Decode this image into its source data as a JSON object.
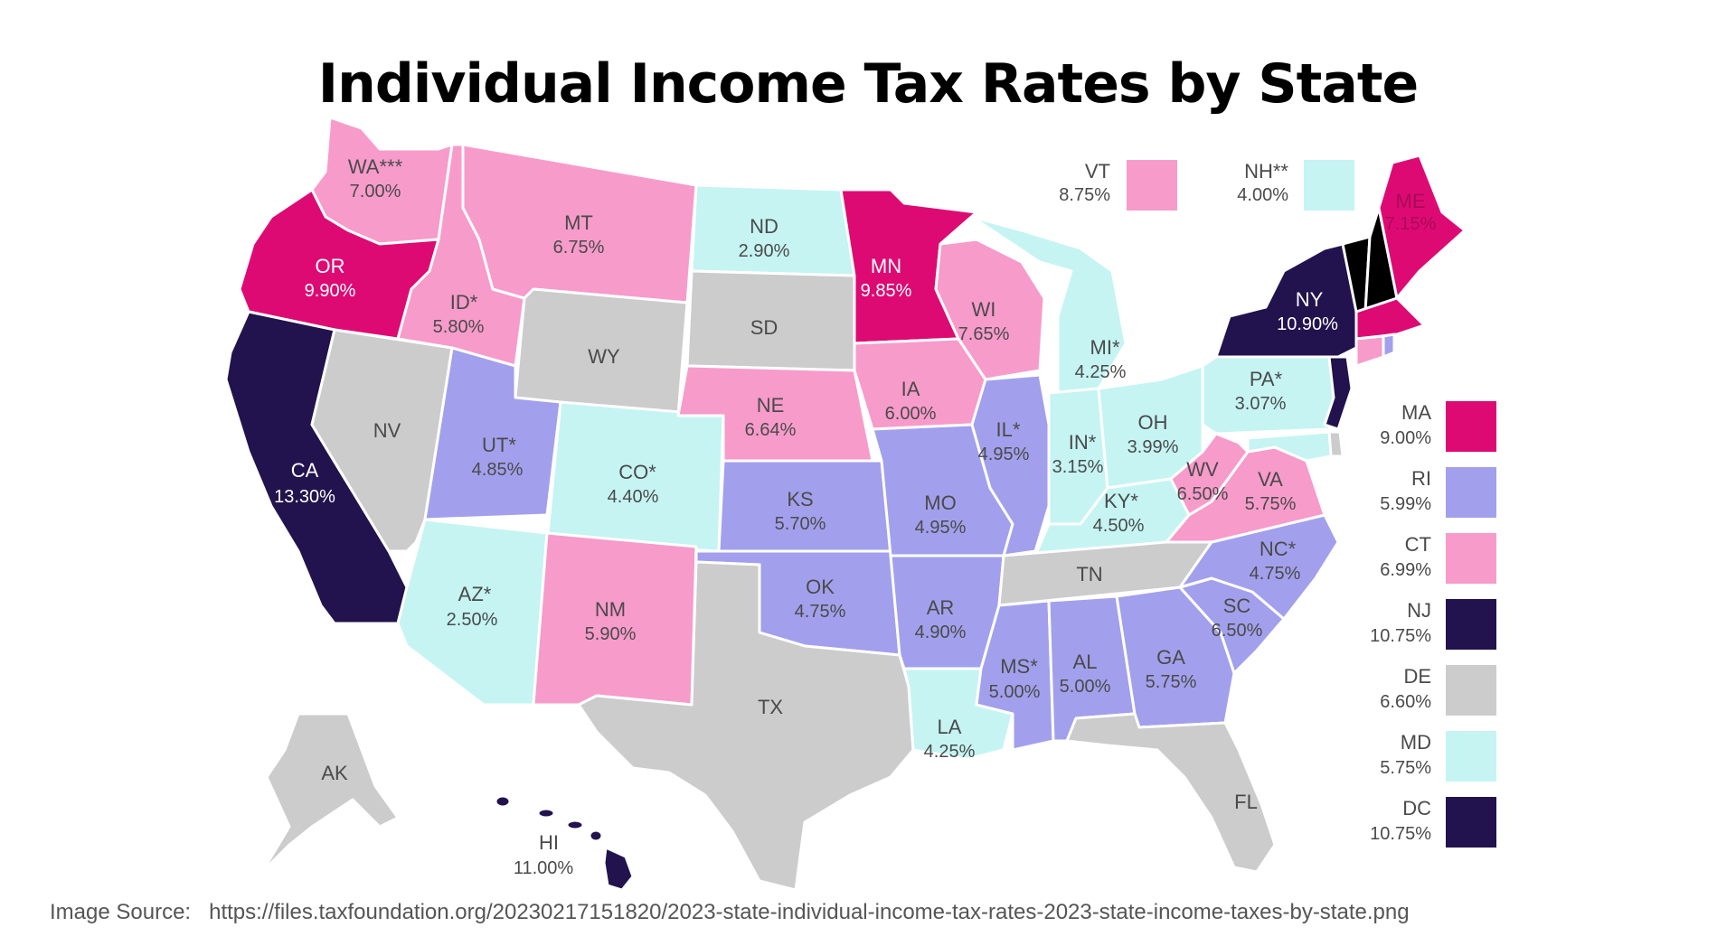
{
  "title": "Individual Income Tax Rates by State",
  "source_label": "Image Source:",
  "source_url": "https://files.taxfoundation.org/20230217151820/2023-state-individual-income-tax-rates-2023-state-income-taxes-by-state.png",
  "colors": {
    "magenta": "#de0a73",
    "navy": "#22124d",
    "lavender": "#a2a0ec",
    "pink": "#f79bcb",
    "cyan": "#c5f4f3",
    "gray": "#cccccc",
    "orange": "#f5b13a",
    "yellow": "#f2d24b"
  },
  "states": {
    "WA": {
      "code": "WA***",
      "rate": "7.00%",
      "color": "pink"
    },
    "OR": {
      "code": "OR",
      "rate": "9.90%",
      "color": "magenta"
    },
    "CA": {
      "code": "CA",
      "rate": "13.30%",
      "color": "navy"
    },
    "NV": {
      "code": "NV",
      "rate": "",
      "color": "gray"
    },
    "ID": {
      "code": "ID*",
      "rate": "5.80%",
      "color": "pink"
    },
    "MT": {
      "code": "MT",
      "rate": "6.75%",
      "color": "pink"
    },
    "WY": {
      "code": "WY",
      "rate": "",
      "color": "gray"
    },
    "UT": {
      "code": "UT*",
      "rate": "4.85%",
      "color": "lavender"
    },
    "CO": {
      "code": "CO*",
      "rate": "4.40%",
      "color": "cyan"
    },
    "AZ": {
      "code": "AZ*",
      "rate": "2.50%",
      "color": "cyan"
    },
    "NM": {
      "code": "NM",
      "rate": "5.90%",
      "color": "pink"
    },
    "ND": {
      "code": "ND",
      "rate": "2.90%",
      "color": "cyan"
    },
    "SD": {
      "code": "SD",
      "rate": "",
      "color": "gray"
    },
    "NE": {
      "code": "NE",
      "rate": "6.64%",
      "color": "pink"
    },
    "KS": {
      "code": "KS",
      "rate": "5.70%",
      "color": "lavender"
    },
    "OK": {
      "code": "OK",
      "rate": "4.75%",
      "color": "lavender"
    },
    "TX": {
      "code": "TX",
      "rate": "",
      "color": "gray"
    },
    "MN": {
      "code": "MN",
      "rate": "9.85%",
      "color": "magenta"
    },
    "IA": {
      "code": "IA",
      "rate": "6.00%",
      "color": "pink"
    },
    "MO": {
      "code": "MO",
      "rate": "4.95%",
      "color": "lavender"
    },
    "AR": {
      "code": "AR",
      "rate": "4.90%",
      "color": "lavender"
    },
    "LA": {
      "code": "LA",
      "rate": "4.25%",
      "color": "cyan"
    },
    "WI": {
      "code": "WI",
      "rate": "7.65%",
      "color": "pink"
    },
    "IL": {
      "code": "IL*",
      "rate": "4.95%",
      "color": "lavender"
    },
    "MI": {
      "code": "MI*",
      "rate": "4.25%",
      "color": "cyan"
    },
    "IN": {
      "code": "IN*",
      "rate": "3.15%",
      "color": "cyan"
    },
    "OH": {
      "code": "OH",
      "rate": "3.99%",
      "color": "cyan"
    },
    "KY": {
      "code": "KY*",
      "rate": "4.50%",
      "color": "cyan"
    },
    "TN": {
      "code": "TN",
      "rate": "",
      "color": "gray"
    },
    "MS": {
      "code": "MS*",
      "rate": "5.00%",
      "color": "lavender"
    },
    "AL": {
      "code": "AL",
      "rate": "5.00%",
      "color": "lavender"
    },
    "GA": {
      "code": "GA",
      "rate": "5.75%",
      "color": "lavender"
    },
    "FL": {
      "code": "FL",
      "rate": "",
      "color": "gray"
    },
    "SC": {
      "code": "SC",
      "rate": "6.50%",
      "color": "lavender"
    },
    "NC": {
      "code": "NC*",
      "rate": "4.75%",
      "color": "lavender"
    },
    "VA": {
      "code": "VA",
      "rate": "5.75%",
      "color": "pink"
    },
    "WV": {
      "code": "WV",
      "rate": "6.50%",
      "color": "pink"
    },
    "PA": {
      "code": "PA*",
      "rate": "3.07%",
      "color": "cyan"
    },
    "NY": {
      "code": "NY",
      "rate": "10.90%",
      "color": "navy"
    },
    "ME": {
      "code": "ME",
      "rate": "7.15%",
      "color": "magenta"
    },
    "AK": {
      "code": "AK",
      "rate": "",
      "color": "gray"
    },
    "HI": {
      "code": "HI",
      "rate": "11.00%",
      "color": "navy"
    }
  },
  "callouts_top": [
    {
      "code": "VT",
      "rate": "8.75%",
      "color": "pink"
    },
    {
      "code": "NH**",
      "rate": "4.00%",
      "color": "cyan"
    }
  ],
  "legend_right": [
    {
      "code": "MA",
      "rate": "9.00%",
      "color": "magenta"
    },
    {
      "code": "RI",
      "rate": "5.99%",
      "color": "lavender"
    },
    {
      "code": "CT",
      "rate": "6.99%",
      "color": "pink"
    },
    {
      "code": "NJ",
      "rate": "10.75%",
      "color": "navy"
    },
    {
      "code": "DE",
      "rate": "6.60%",
      "color": "gray"
    },
    {
      "code": "MD",
      "rate": "5.75%",
      "color": "cyan"
    },
    {
      "code": "DC",
      "rate": "10.75%",
      "color": "navy"
    }
  ]
}
